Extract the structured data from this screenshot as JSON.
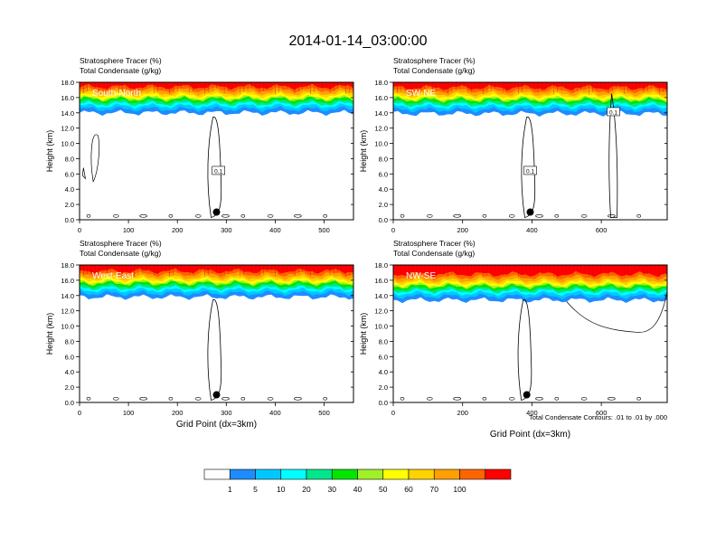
{
  "figure": {
    "title": "2014-01-14_03:00:00",
    "footnote": "Total Condensate Contours: .01 to .01 by .000"
  },
  "colors": {
    "scale": [
      "#ffffff",
      "#1e8cff",
      "#00c8ff",
      "#00ffff",
      "#00e68c",
      "#00e600",
      "#a0f028",
      "#ffff00",
      "#ffd200",
      "#ffa000",
      "#ff6400",
      "#ff0000"
    ],
    "contour": "#000000",
    "marker": "#000000"
  },
  "colorbar": {
    "labels": [
      "1",
      "5",
      "10",
      "20",
      "30",
      "40",
      "50",
      "60",
      "70",
      "100"
    ]
  },
  "chart_data": [
    {
      "type": "heatmap",
      "panel_label": "South-North",
      "subtitle_line1": "Stratosphere Tracer   (%)",
      "subtitle_line2": "Total Condensate   (g/kg)",
      "ylabel": "Height (km)",
      "xlabel": "",
      "xlim": [
        0,
        560
      ],
      "ylim": [
        0,
        18
      ],
      "xticks": [
        "0",
        "100",
        "200",
        "300",
        "400",
        "500"
      ],
      "xtick_values": [
        0,
        100,
        200,
        300,
        400,
        500
      ],
      "yticks": [
        "0.0",
        "2.0",
        "4.0",
        "6.0",
        "8.0",
        "10.0",
        "12.0",
        "14.0",
        "16.0",
        "18.0"
      ],
      "tracer_base_km": 14.0,
      "marker": {
        "x": 280,
        "y_km": 1.0
      },
      "contour_label": {
        "text": "0.1",
        "x": 284,
        "y_km": 6.4
      }
    },
    {
      "type": "heatmap",
      "panel_label": "SW-NE",
      "subtitle_line1": "Stratosphere Tracer   (%)",
      "subtitle_line2": "Total Condensate   (g/kg)",
      "ylabel": "Height (km)",
      "xlabel": "",
      "xlim": [
        0,
        790
      ],
      "ylim": [
        0,
        18
      ],
      "xticks": [
        "0",
        "200",
        "400",
        "600"
      ],
      "xtick_values": [
        0,
        200,
        400,
        600
      ],
      "yticks": [
        "0.0",
        "2.0",
        "4.0",
        "6.0",
        "8.0",
        "10.0",
        "12.0",
        "14.0",
        "16.0",
        "18.0"
      ],
      "tracer_base_km": 13.9,
      "marker": {
        "x": 395,
        "y_km": 1.0
      },
      "contour_label": {
        "text": "0.1",
        "x": 395,
        "y_km": 6.4
      },
      "contour_label_2": {
        "text": "0.1",
        "x": 635,
        "y_km": 14.1
      }
    },
    {
      "type": "heatmap",
      "panel_label": "West-East",
      "subtitle_line1": "Stratosphere Tracer   (%)",
      "subtitle_line2": "Total Condensate   (g/kg)",
      "ylabel": "Height (km)",
      "xlabel": "Grid Point (dx=3km)",
      "xlim": [
        0,
        560
      ],
      "ylim": [
        0,
        18
      ],
      "xticks": [
        "0",
        "100",
        "200",
        "300",
        "400",
        "500"
      ],
      "xtick_values": [
        0,
        100,
        200,
        300,
        400,
        500
      ],
      "yticks": [
        "0.0",
        "2.0",
        "4.0",
        "6.0",
        "8.0",
        "10.0",
        "12.0",
        "14.0",
        "16.0",
        "18.0"
      ],
      "tracer_base_km": 13.8,
      "marker": {
        "x": 280,
        "y_km": 1.0
      }
    },
    {
      "type": "heatmap",
      "panel_label": "NW-SE",
      "subtitle_line1": "Stratosphere Tracer   (%)",
      "subtitle_line2": "Total Condensate   (g/kg)",
      "ylabel": "Height (km)",
      "xlabel": "Grid Point (dx=3km)",
      "xlim": [
        0,
        790
      ],
      "ylim": [
        0,
        18
      ],
      "xticks": [
        "0",
        "200",
        "400",
        "600"
      ],
      "xtick_values": [
        0,
        200,
        400,
        600
      ],
      "yticks": [
        "0.0",
        "2.0",
        "4.0",
        "6.0",
        "8.0",
        "10.0",
        "12.0",
        "14.0",
        "16.0",
        "18.0"
      ],
      "tracer_base_km": 13.4,
      "marker": {
        "x": 385,
        "y_km": 1.0
      }
    }
  ]
}
